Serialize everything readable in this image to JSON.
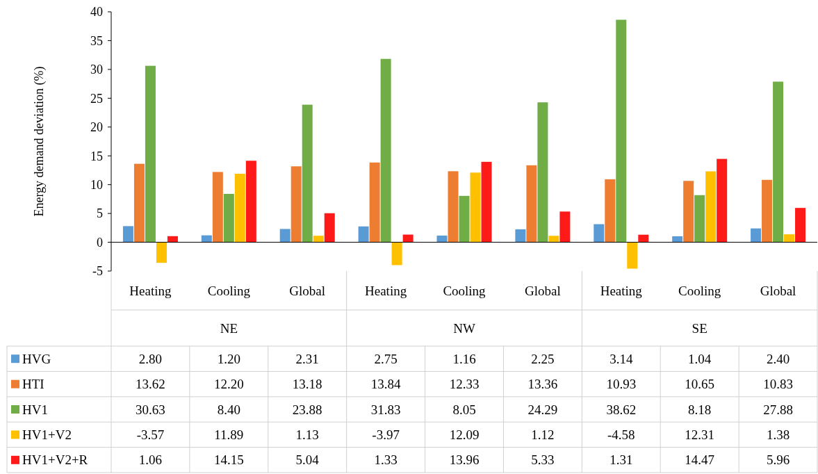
{
  "chart_data": {
    "type": "bar",
    "ylabel": "Energy demand deviation (%)",
    "categories": [
      "Heating",
      "Cooling",
      "Global",
      "Heating",
      "Cooling",
      "Global",
      "Heating",
      "Cooling",
      "Global"
    ],
    "annotations": [
      "NE",
      "NW",
      "SE"
    ],
    "series": [
      {
        "name": "HVG",
        "color": "#5b9bd5",
        "values": [
          2.8,
          1.2,
          2.31,
          2.75,
          1.16,
          2.25,
          3.14,
          1.04,
          2.4
        ],
        "value_labels": [
          "2.80",
          "1.20",
          "2.31",
          "2.75",
          "1.16",
          "2.25",
          "3.14",
          "1.04",
          "2.40"
        ]
      },
      {
        "name": "HTI",
        "color": "#ed7d31",
        "values": [
          13.62,
          12.2,
          13.18,
          13.84,
          12.33,
          13.36,
          10.93,
          10.65,
          10.83
        ],
        "value_labels": [
          "13.62",
          "12.20",
          "13.18",
          "13.84",
          "12.33",
          "13.36",
          "10.93",
          "10.65",
          "10.83"
        ]
      },
      {
        "name": "HV1",
        "color": "#70ad47",
        "values": [
          30.63,
          8.4,
          23.88,
          31.83,
          8.05,
          24.29,
          38.62,
          8.18,
          27.88
        ],
        "value_labels": [
          "30.63",
          "8.40",
          "23.88",
          "31.83",
          "8.05",
          "24.29",
          "38.62",
          "8.18",
          "27.88"
        ]
      },
      {
        "name": "HV1+V2",
        "color": "#ffc000",
        "values": [
          -3.57,
          11.89,
          1.13,
          -3.97,
          12.09,
          1.12,
          -4.58,
          12.31,
          1.38
        ],
        "value_labels": [
          "-3.57",
          "11.89",
          "1.13",
          "-3.97",
          "12.09",
          "1.12",
          "-4.58",
          "12.31",
          "1.38"
        ]
      },
      {
        "name": "HV1+V2+R",
        "color": "#ff1a1a",
        "values": [
          1.06,
          14.15,
          5.04,
          1.33,
          13.96,
          5.33,
          1.31,
          14.47,
          5.96
        ],
        "value_labels": [
          "1.06",
          "14.15",
          "5.04",
          "1.33",
          "13.96",
          "5.33",
          "1.31",
          "14.47",
          "5.96"
        ]
      }
    ],
    "ylim": [
      -5,
      40
    ],
    "yticks": [
      -5,
      0,
      5,
      10,
      15,
      20,
      25,
      30,
      35,
      40
    ],
    "legend": "bottom"
  }
}
